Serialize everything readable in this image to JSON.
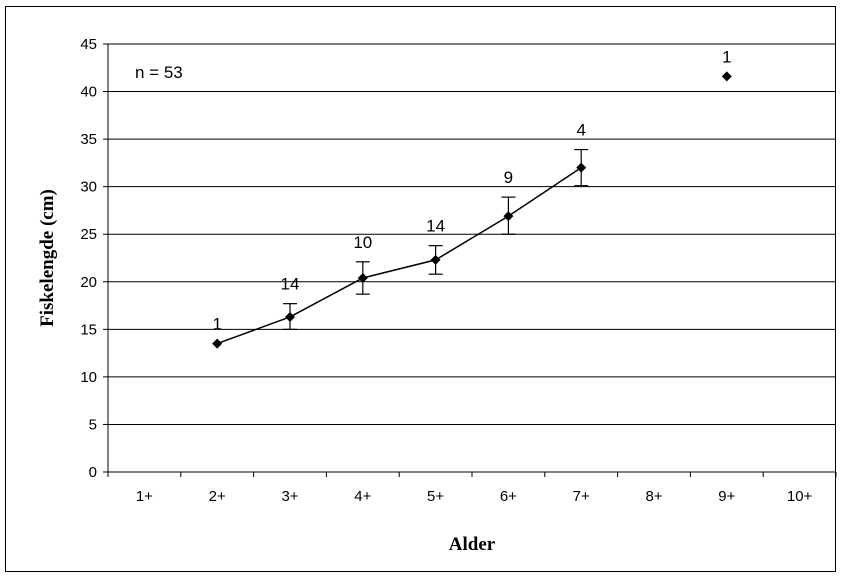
{
  "chart_data": {
    "type": "line",
    "xlabel": "Alder",
    "ylabel": "Fiskelengde (cm)",
    "annotation": "n = 53",
    "categories": [
      "1+",
      "2+",
      "3+",
      "4+",
      "5+",
      "6+",
      "7+",
      "8+",
      "9+",
      "10+"
    ],
    "ylim": [
      0,
      45
    ],
    "yticks": [
      "0",
      "5",
      "10",
      "15",
      "20",
      "25",
      "30",
      "35",
      "40",
      "45"
    ],
    "grid": true,
    "legend": "none",
    "series": [
      {
        "points": [
          {
            "x": "2+",
            "y": 13.5,
            "label": "1"
          },
          {
            "x": "3+",
            "y": 16.3,
            "err_low": 15.0,
            "err_high": 17.7,
            "label": "14"
          },
          {
            "x": "4+",
            "y": 20.4,
            "err_low": 18.7,
            "err_high": 22.1,
            "label": "10"
          },
          {
            "x": "5+",
            "y": 22.3,
            "err_low": 20.8,
            "err_high": 23.8,
            "label": "14"
          },
          {
            "x": "6+",
            "y": 26.9,
            "err_low": 25.0,
            "err_high": 28.9,
            "label": "9"
          },
          {
            "x": "7+",
            "y": 32.0,
            "err_low": 30.1,
            "err_high": 33.9,
            "label": "4"
          }
        ]
      },
      {
        "points": [
          {
            "x": "9+",
            "y": 41.6,
            "label": "1"
          }
        ]
      }
    ]
  }
}
